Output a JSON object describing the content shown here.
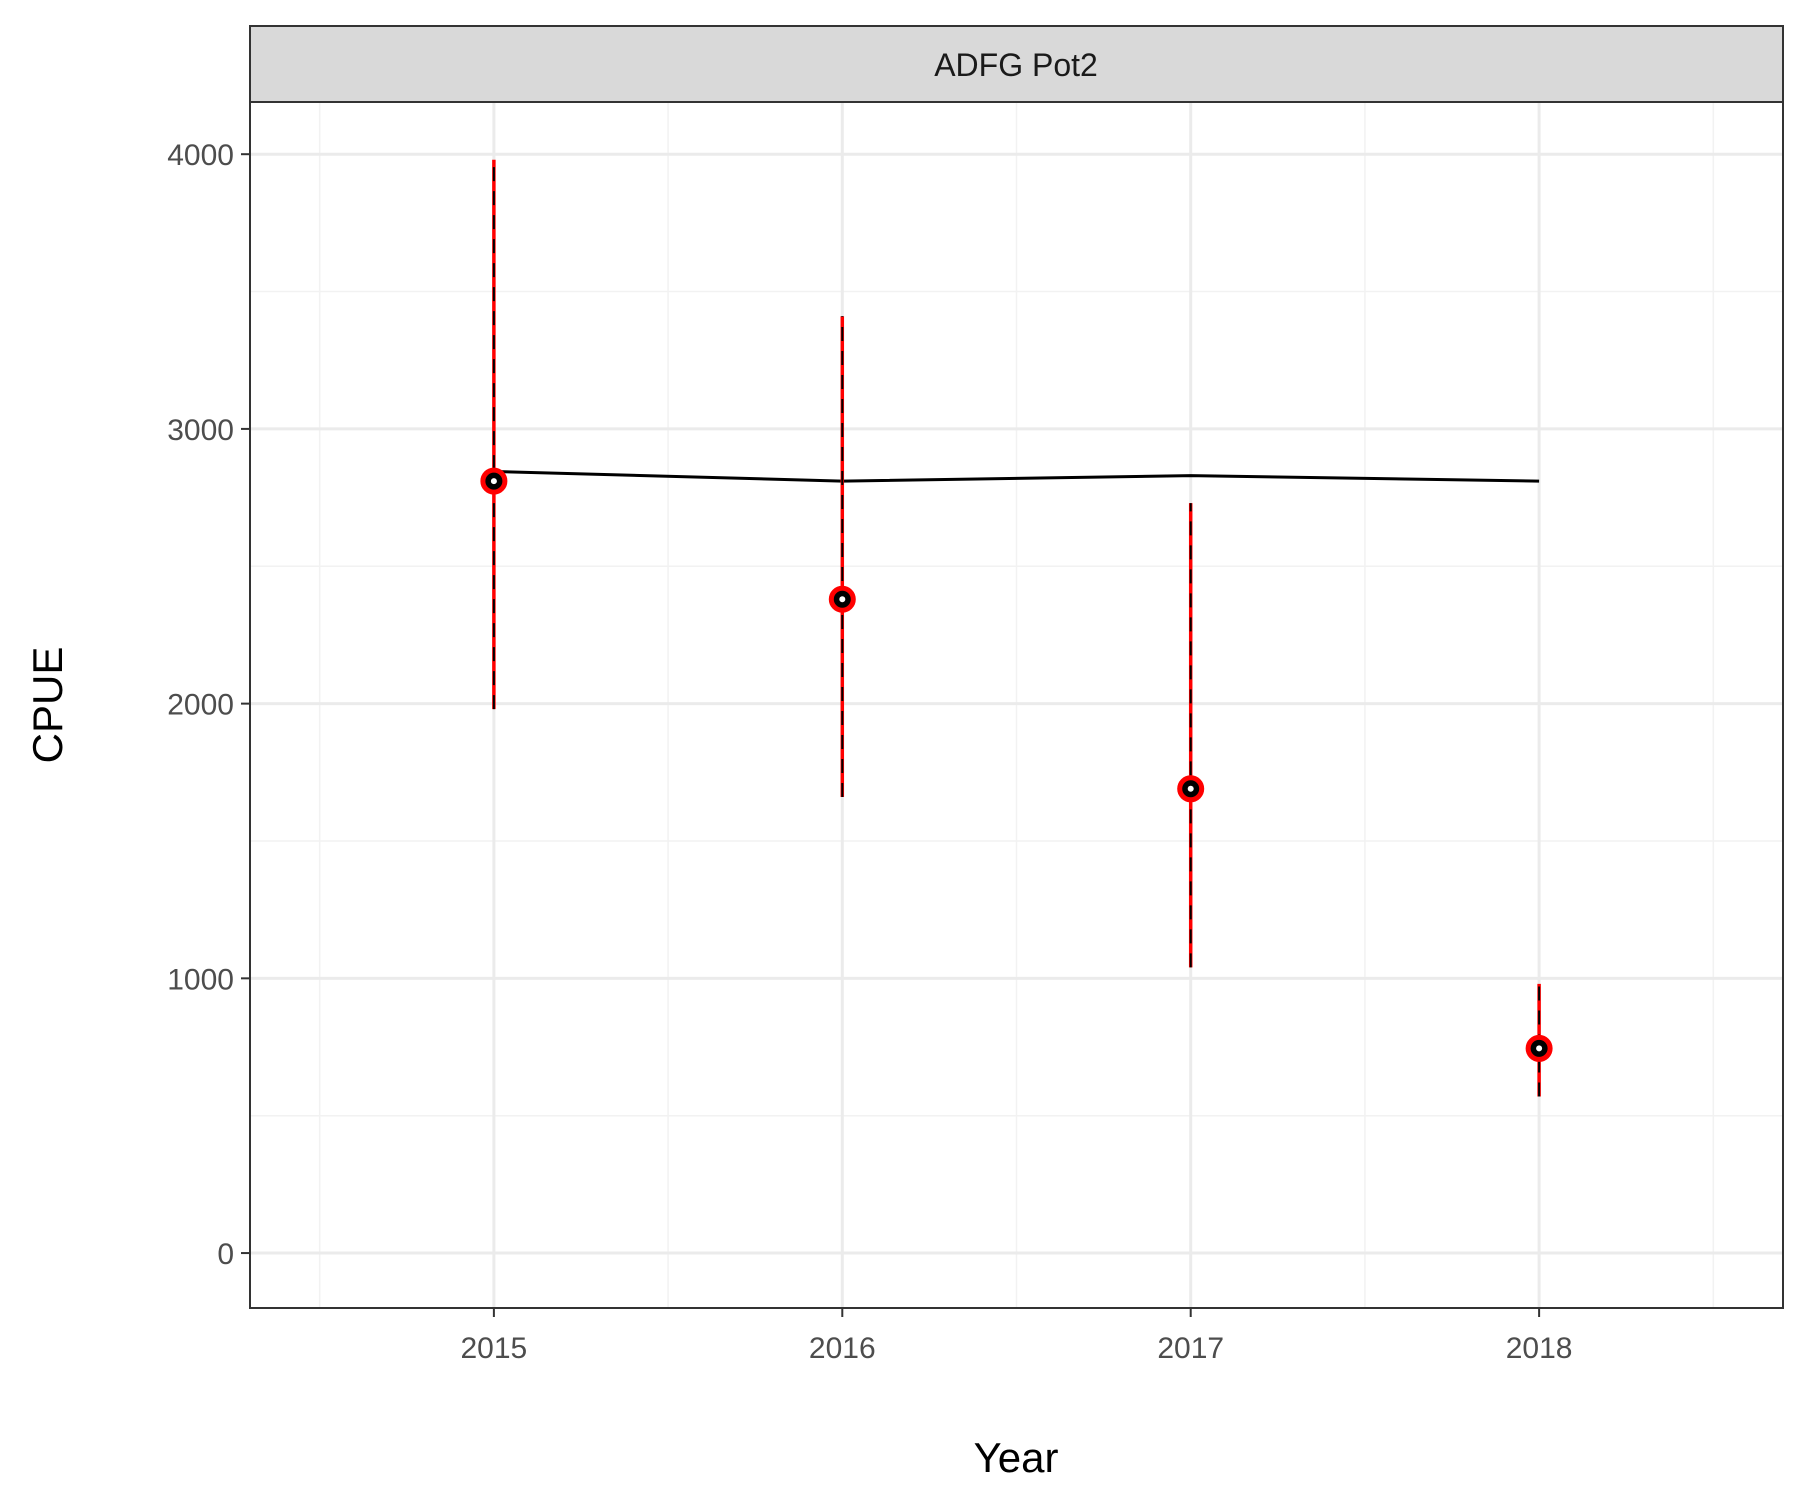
{
  "chart_data": {
    "type": "scatter",
    "panel_label": "ADFG Pot2",
    "xlabel": "Year",
    "ylabel": "CPUE",
    "x": [
      2015,
      2016,
      2017,
      2018
    ],
    "x_tick_labels": [
      "2015",
      "2016",
      "2017",
      "2018"
    ],
    "y_tick_labels": [
      "0",
      "1000",
      "2000",
      "3000",
      "4000"
    ],
    "xlim": [
      2014.3,
      2018.7
    ],
    "ylim": [
      -200,
      4190
    ],
    "grid": true,
    "series": [
      {
        "kind": "points_with_error_bars",
        "y": [
          2810,
          2380,
          1690,
          745
        ],
        "lower": [
          1980,
          1660,
          1040,
          570
        ],
        "upper": [
          3980,
          3410,
          2730,
          980
        ],
        "color": "#ff0000"
      },
      {
        "kind": "line",
        "y": [
          2845,
          2810,
          2830,
          2810
        ],
        "color": "#000000"
      }
    ]
  }
}
